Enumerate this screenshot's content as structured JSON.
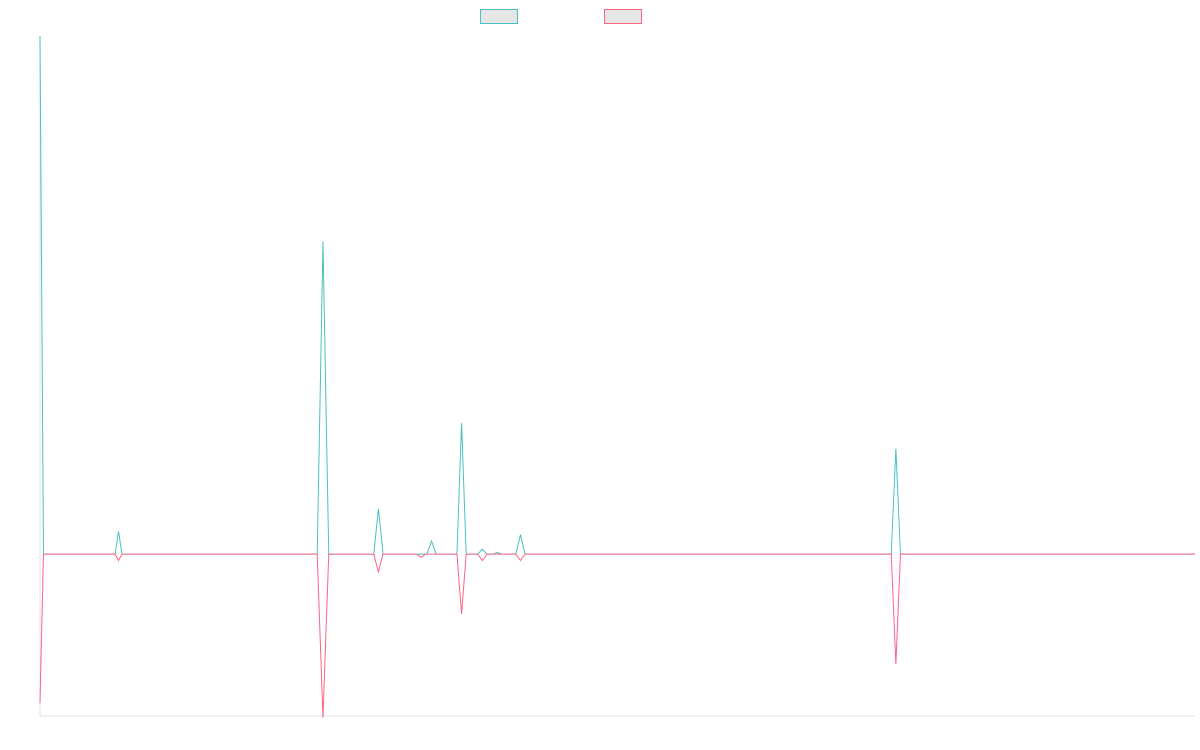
{
  "chart_data": {
    "type": "line",
    "title": "",
    "xlabel": "",
    "ylabel": "",
    "grid": false,
    "legend_placement": "top-center",
    "x_range": [
      0,
      100
    ],
    "ylim": [
      -100,
      320
    ],
    "series": [
      {
        "name": "",
        "color": "#4bc0c0",
        "points": [
          [
            0,
            320
          ],
          [
            0.3,
            0
          ],
          [
            6.5,
            0
          ],
          [
            6.8,
            14
          ],
          [
            7.1,
            0
          ],
          [
            24,
            0
          ],
          [
            24.5,
            193
          ],
          [
            25,
            0
          ],
          [
            28.9,
            0
          ],
          [
            29.3,
            28
          ],
          [
            29.7,
            0
          ],
          [
            33.5,
            0
          ],
          [
            33.9,
            8
          ],
          [
            34.3,
            0
          ],
          [
            36.1,
            0
          ],
          [
            36.5,
            81
          ],
          [
            36.9,
            0
          ],
          [
            37.9,
            0
          ],
          [
            38.3,
            3
          ],
          [
            38.7,
            0
          ],
          [
            39.2,
            0
          ],
          [
            39.6,
            1
          ],
          [
            40.0,
            0
          ],
          [
            41.2,
            0
          ],
          [
            41.6,
            12
          ],
          [
            42.0,
            0
          ],
          [
            73.7,
            0
          ],
          [
            74.1,
            65
          ],
          [
            74.5,
            0
          ],
          [
            100,
            0
          ]
        ]
      },
      {
        "name": "",
        "color": "#ff6384",
        "points": [
          [
            0,
            -92
          ],
          [
            0.3,
            0
          ],
          [
            6.5,
            0
          ],
          [
            6.8,
            -4
          ],
          [
            7.1,
            0
          ],
          [
            24,
            0
          ],
          [
            24.5,
            -101
          ],
          [
            25,
            0
          ],
          [
            28.9,
            0
          ],
          [
            29.3,
            -11
          ],
          [
            29.7,
            0
          ],
          [
            32.6,
            0
          ],
          [
            33.0,
            -2
          ],
          [
            33.4,
            0
          ],
          [
            36.1,
            0
          ],
          [
            36.5,
            -37
          ],
          [
            36.9,
            0
          ],
          [
            37.9,
            0
          ],
          [
            38.3,
            -4
          ],
          [
            38.7,
            0
          ],
          [
            41.2,
            0
          ],
          [
            41.6,
            -4
          ],
          [
            42.0,
            0
          ],
          [
            73.7,
            0
          ],
          [
            74.1,
            -68
          ],
          [
            74.5,
            0
          ],
          [
            100,
            0
          ]
        ]
      }
    ]
  }
}
